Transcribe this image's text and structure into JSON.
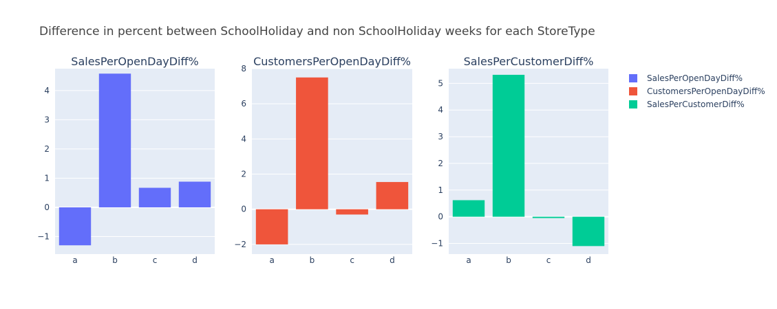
{
  "figure": {
    "title": "Difference in percent between SchoolHoliday and non SchoolHoliday weeks for each StoreType"
  },
  "chart_data": [
    {
      "type": "bar",
      "title": "SalesPerOpenDayDiff%",
      "series_name": "SalesPerOpenDayDiff%",
      "color": "#636efa",
      "categories": [
        "a",
        "b",
        "c",
        "d"
      ],
      "values": [
        -1.3,
        4.58,
        0.67,
        0.88
      ],
      "ylim": [
        -1.6,
        4.75
      ],
      "yticks": [
        -1,
        0,
        1,
        2,
        3,
        4
      ],
      "ytick_labels": [
        "−1",
        "0",
        "1",
        "2",
        "3",
        "4"
      ]
    },
    {
      "type": "bar",
      "title": "CustomersPerOpenDayDiff%",
      "series_name": "CustomersPerOpenDayDiff%",
      "color": "#ef553b",
      "categories": [
        "a",
        "b",
        "c",
        "d"
      ],
      "values": [
        -2.0,
        7.5,
        -0.3,
        1.55
      ],
      "ylim": [
        -2.55,
        8.0
      ],
      "yticks": [
        -2,
        0,
        2,
        4,
        6,
        8
      ],
      "ytick_labels": [
        "−2",
        "0",
        "2",
        "4",
        "6",
        "8"
      ]
    },
    {
      "type": "bar",
      "title": "SalesPerCustomerDiff%",
      "series_name": "SalesPerCustomerDiff%",
      "color": "#00cc96",
      "categories": [
        "a",
        "b",
        "c",
        "d"
      ],
      "values": [
        0.62,
        5.32,
        -0.05,
        -1.1
      ],
      "ylim": [
        -1.4,
        5.55
      ],
      "yticks": [
        -1,
        0,
        1,
        2,
        3,
        4,
        5
      ],
      "ytick_labels": [
        "−1",
        "0",
        "1",
        "2",
        "3",
        "4",
        "5"
      ]
    }
  ],
  "legend": {
    "placement": "right",
    "items": [
      {
        "label": "SalesPerOpenDayDiff%",
        "color": "#636efa"
      },
      {
        "label": "CustomersPerOpenDayDiff%",
        "color": "#ef553b"
      },
      {
        "label": "SalesPerCustomerDiff%",
        "color": "#00cc96"
      }
    ]
  }
}
